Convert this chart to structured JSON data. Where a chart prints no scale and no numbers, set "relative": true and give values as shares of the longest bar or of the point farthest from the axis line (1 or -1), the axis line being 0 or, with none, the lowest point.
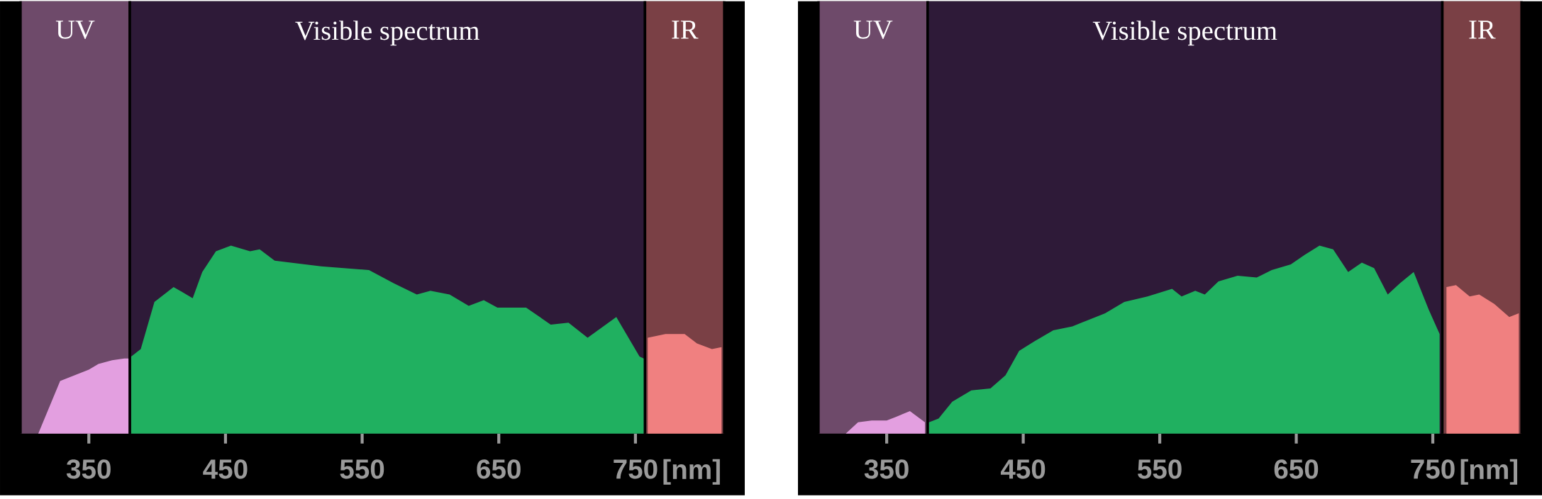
{
  "chart_data": [
    {
      "type": "area",
      "relative": true,
      "xlabel": "[nm]",
      "xlim": [
        285,
        830
      ],
      "xticks": [
        350,
        450,
        550,
        650,
        750
      ],
      "grid": false,
      "bands": [
        {
          "axis": "x",
          "from": 300,
          "to": 380,
          "label": "UV",
          "color": "#6e4a6a"
        },
        {
          "axis": "x",
          "from": 380,
          "to": 757,
          "label": "Visible spectrum",
          "color": "#2e1a38"
        },
        {
          "axis": "x",
          "from": 757,
          "to": 815,
          "label": "IR",
          "color": "#7a4045"
        }
      ],
      "series": [
        {
          "color": "#e39fe0",
          "x": [
            313,
            329,
            350,
            357,
            367,
            376,
            379
          ],
          "values": [
            0,
            0.28,
            0.34,
            0.37,
            0.39,
            0.4,
            0.4
          ]
        },
        {
          "color": "#20b060",
          "x": [
            381,
            388,
            398,
            412,
            426,
            433,
            443,
            454,
            468,
            475,
            486,
            520,
            555,
            573,
            590,
            600,
            614,
            628,
            639,
            649,
            670,
            688,
            701,
            715,
            736,
            753,
            756
          ],
          "values": [
            0.41,
            0.45,
            0.7,
            0.78,
            0.72,
            0.86,
            0.97,
            1.0,
            0.97,
            0.98,
            0.92,
            0.89,
            0.87,
            0.8,
            0.74,
            0.76,
            0.74,
            0.68,
            0.71,
            0.67,
            0.67,
            0.58,
            0.59,
            0.51,
            0.62,
            0.41,
            0.4
          ]
        },
        {
          "color": "#f08080",
          "x": [
            759,
            772,
            786,
            795,
            806,
            813
          ],
          "values": [
            0.51,
            0.53,
            0.53,
            0.48,
            0.45,
            0.46
          ]
        }
      ]
    },
    {
      "type": "area",
      "relative": true,
      "xlabel": "[nm]",
      "xlim": [
        285,
        830
      ],
      "xticks": [
        350,
        450,
        550,
        650,
        750
      ],
      "grid": false,
      "bands": [
        {
          "axis": "x",
          "from": 300,
          "to": 380,
          "label": "UV",
          "color": "#6e4a6a"
        },
        {
          "axis": "x",
          "from": 380,
          "to": 757,
          "label": "Visible spectrum",
          "color": "#2e1a38"
        },
        {
          "axis": "x",
          "from": 757,
          "to": 815,
          "label": "IR",
          "color": "#7a4045"
        }
      ],
      "series": [
        {
          "color": "#e39fe0",
          "x": [
            320,
            329,
            339,
            350,
            357,
            367,
            378
          ],
          "values": [
            0,
            0.06,
            0.07,
            0.07,
            0.09,
            0.12,
            0.06
          ]
        },
        {
          "color": "#20b060",
          "x": [
            381,
            388,
            398,
            412,
            426,
            437,
            447,
            458,
            472,
            486,
            496,
            510,
            524,
            541,
            559,
            566,
            576,
            583,
            593,
            607,
            621,
            632,
            646,
            656,
            667,
            677,
            688,
            698,
            707,
            717,
            726,
            736,
            747,
            755
          ],
          "values": [
            0.06,
            0.08,
            0.17,
            0.23,
            0.24,
            0.31,
            0.44,
            0.49,
            0.55,
            0.57,
            0.6,
            0.64,
            0.7,
            0.73,
            0.77,
            0.73,
            0.76,
            0.74,
            0.81,
            0.84,
            0.83,
            0.87,
            0.9,
            0.95,
            1.0,
            0.98,
            0.86,
            0.91,
            0.88,
            0.74,
            0.8,
            0.86,
            0.66,
            0.53
          ]
        },
        {
          "color": "#f08080",
          "x": [
            760,
            767,
            777,
            784,
            795,
            806,
            813
          ],
          "values": [
            0.78,
            0.79,
            0.73,
            0.74,
            0.69,
            0.62,
            0.64
          ]
        }
      ]
    }
  ]
}
